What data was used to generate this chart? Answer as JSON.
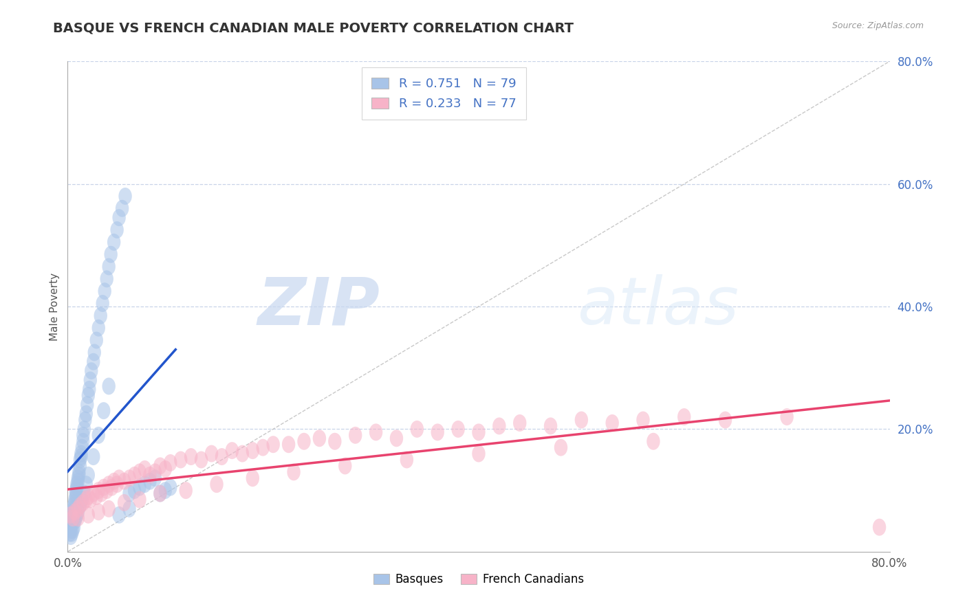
{
  "title": "BASQUE VS FRENCH CANADIAN MALE POVERTY CORRELATION CHART",
  "source_text": "Source: ZipAtlas.com",
  "ylabel": "Male Poverty",
  "xlim": [
    0.0,
    0.8
  ],
  "ylim": [
    0.0,
    0.8
  ],
  "xtick_vals": [
    0.0,
    0.8
  ],
  "xtick_labels": [
    "0.0%",
    "80.0%"
  ],
  "ytick_vals_right": [
    0.2,
    0.4,
    0.6,
    0.8
  ],
  "ytick_labels_right": [
    "20.0%",
    "40.0%",
    "60.0%",
    "80.0%"
  ],
  "basque_R": 0.751,
  "basque_N": 79,
  "french_R": 0.233,
  "french_N": 77,
  "basque_color": "#a8c4e8",
  "french_color": "#f7b3c8",
  "basque_line_color": "#2255cc",
  "french_line_color": "#e8436e",
  "legend_label_basque": "Basques",
  "legend_label_french": "French Canadians",
  "background_color": "#ffffff",
  "grid_color": "#c8d4e8",
  "watermark_zip": "ZIP",
  "watermark_atlas": "atlas",
  "title_color": "#333333",
  "title_fontsize": 14,
  "ref_line_color": "#bbbbbb",
  "basque_x": [
    0.002,
    0.003,
    0.003,
    0.004,
    0.004,
    0.005,
    0.005,
    0.005,
    0.006,
    0.006,
    0.007,
    0.007,
    0.008,
    0.008,
    0.008,
    0.009,
    0.009,
    0.01,
    0.01,
    0.011,
    0.011,
    0.012,
    0.012,
    0.013,
    0.013,
    0.014,
    0.015,
    0.015,
    0.016,
    0.017,
    0.018,
    0.019,
    0.02,
    0.021,
    0.022,
    0.023,
    0.025,
    0.026,
    0.028,
    0.03,
    0.032,
    0.034,
    0.036,
    0.038,
    0.04,
    0.042,
    0.045,
    0.048,
    0.05,
    0.053,
    0.056,
    0.06,
    0.065,
    0.07,
    0.075,
    0.08,
    0.085,
    0.09,
    0.095,
    0.1,
    0.003,
    0.004,
    0.005,
    0.006,
    0.007,
    0.008,
    0.009,
    0.01,
    0.012,
    0.014,
    0.016,
    0.018,
    0.02,
    0.025,
    0.03,
    0.035,
    0.04,
    0.05,
    0.06
  ],
  "basque_y": [
    0.03,
    0.04,
    0.035,
    0.05,
    0.045,
    0.06,
    0.055,
    0.065,
    0.07,
    0.075,
    0.08,
    0.085,
    0.09,
    0.095,
    0.1,
    0.105,
    0.11,
    0.115,
    0.12,
    0.125,
    0.13,
    0.14,
    0.15,
    0.155,
    0.16,
    0.17,
    0.18,
    0.19,
    0.2,
    0.215,
    0.225,
    0.24,
    0.255,
    0.265,
    0.28,
    0.295,
    0.31,
    0.325,
    0.345,
    0.365,
    0.385,
    0.405,
    0.425,
    0.445,
    0.465,
    0.485,
    0.505,
    0.525,
    0.545,
    0.56,
    0.58,
    0.095,
    0.1,
    0.105,
    0.11,
    0.115,
    0.12,
    0.095,
    0.1,
    0.105,
    0.025,
    0.03,
    0.035,
    0.04,
    0.05,
    0.055,
    0.06,
    0.065,
    0.075,
    0.085,
    0.095,
    0.11,
    0.125,
    0.155,
    0.19,
    0.23,
    0.27,
    0.06,
    0.07
  ],
  "french_x": [
    0.003,
    0.005,
    0.007,
    0.01,
    0.012,
    0.015,
    0.018,
    0.02,
    0.022,
    0.025,
    0.028,
    0.03,
    0.033,
    0.035,
    0.038,
    0.04,
    0.043,
    0.045,
    0.048,
    0.05,
    0.055,
    0.06,
    0.065,
    0.07,
    0.075,
    0.08,
    0.085,
    0.09,
    0.095,
    0.1,
    0.11,
    0.12,
    0.13,
    0.14,
    0.15,
    0.16,
    0.17,
    0.18,
    0.19,
    0.2,
    0.215,
    0.23,
    0.245,
    0.26,
    0.28,
    0.3,
    0.32,
    0.34,
    0.36,
    0.38,
    0.4,
    0.42,
    0.44,
    0.47,
    0.5,
    0.53,
    0.56,
    0.6,
    0.64,
    0.7,
    0.01,
    0.02,
    0.03,
    0.04,
    0.055,
    0.07,
    0.09,
    0.115,
    0.145,
    0.18,
    0.22,
    0.27,
    0.33,
    0.4,
    0.48,
    0.57,
    0.79
  ],
  "french_y": [
    0.06,
    0.055,
    0.065,
    0.07,
    0.075,
    0.08,
    0.085,
    0.09,
    0.085,
    0.095,
    0.09,
    0.1,
    0.095,
    0.105,
    0.1,
    0.11,
    0.105,
    0.115,
    0.11,
    0.12,
    0.115,
    0.12,
    0.125,
    0.13,
    0.135,
    0.125,
    0.13,
    0.14,
    0.135,
    0.145,
    0.15,
    0.155,
    0.15,
    0.16,
    0.155,
    0.165,
    0.16,
    0.165,
    0.17,
    0.175,
    0.175,
    0.18,
    0.185,
    0.18,
    0.19,
    0.195,
    0.185,
    0.2,
    0.195,
    0.2,
    0.195,
    0.205,
    0.21,
    0.205,
    0.215,
    0.21,
    0.215,
    0.22,
    0.215,
    0.22,
    0.055,
    0.06,
    0.065,
    0.07,
    0.08,
    0.085,
    0.095,
    0.1,
    0.11,
    0.12,
    0.13,
    0.14,
    0.15,
    0.16,
    0.17,
    0.18,
    0.04
  ],
  "diag_color": "#bbbbbb"
}
